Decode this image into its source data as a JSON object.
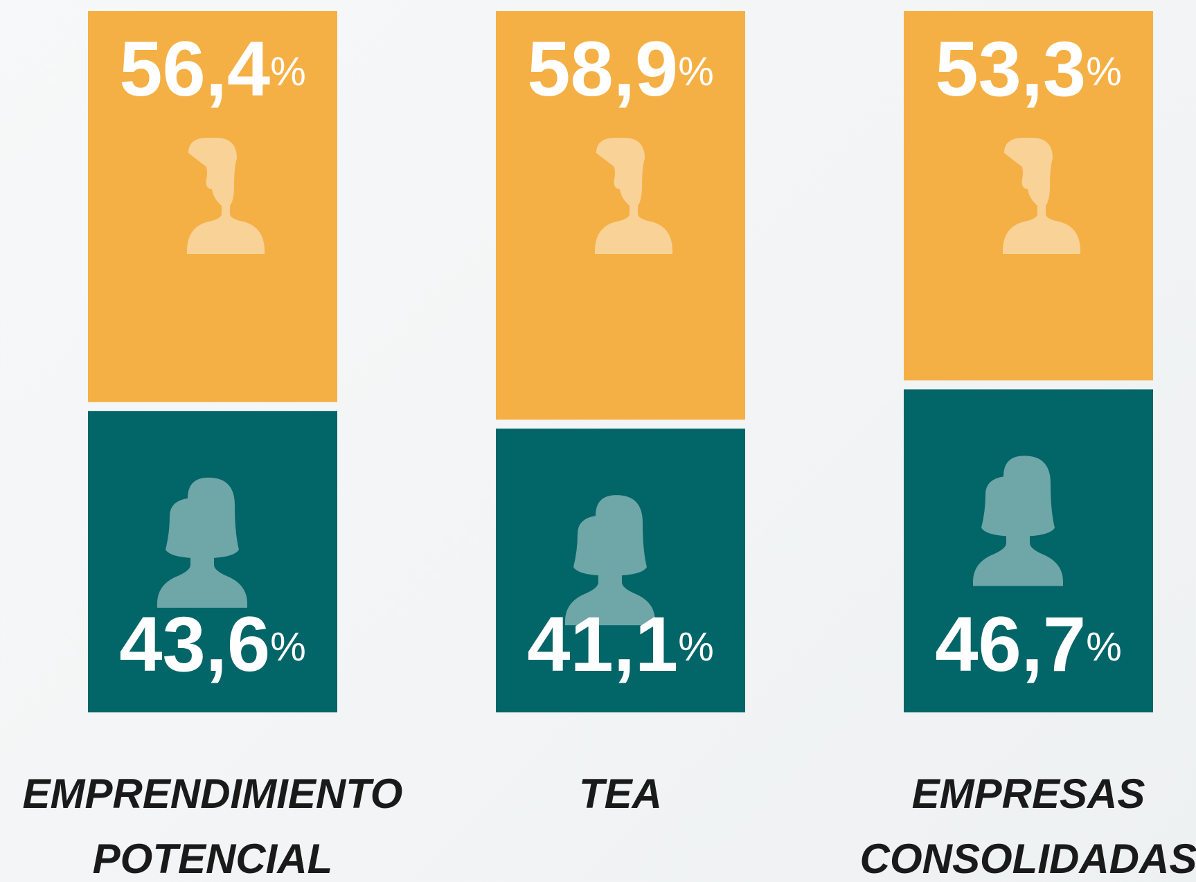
{
  "chart_data": {
    "type": "stacked_bar",
    "categories": [
      [
        "EMPRENDIMIENTO",
        "POTENCIAL"
      ],
      [
        "TEA"
      ],
      [
        "EMPRESAS",
        "CONSOLIDADAS"
      ]
    ],
    "ylim": [
      0,
      100
    ],
    "series": [
      {
        "color": "#f5b045",
        "values": [
          56.4,
          58.9,
          53.3
        ],
        "value_labels": [
          "56,4%",
          "58,9%",
          "53,3%"
        ]
      },
      {
        "color": "#026568",
        "values": [
          43.6,
          41.1,
          46.7
        ],
        "value_labels": [
          "43,6%",
          "41,1%",
          "46,7%"
        ]
      }
    ]
  }
}
